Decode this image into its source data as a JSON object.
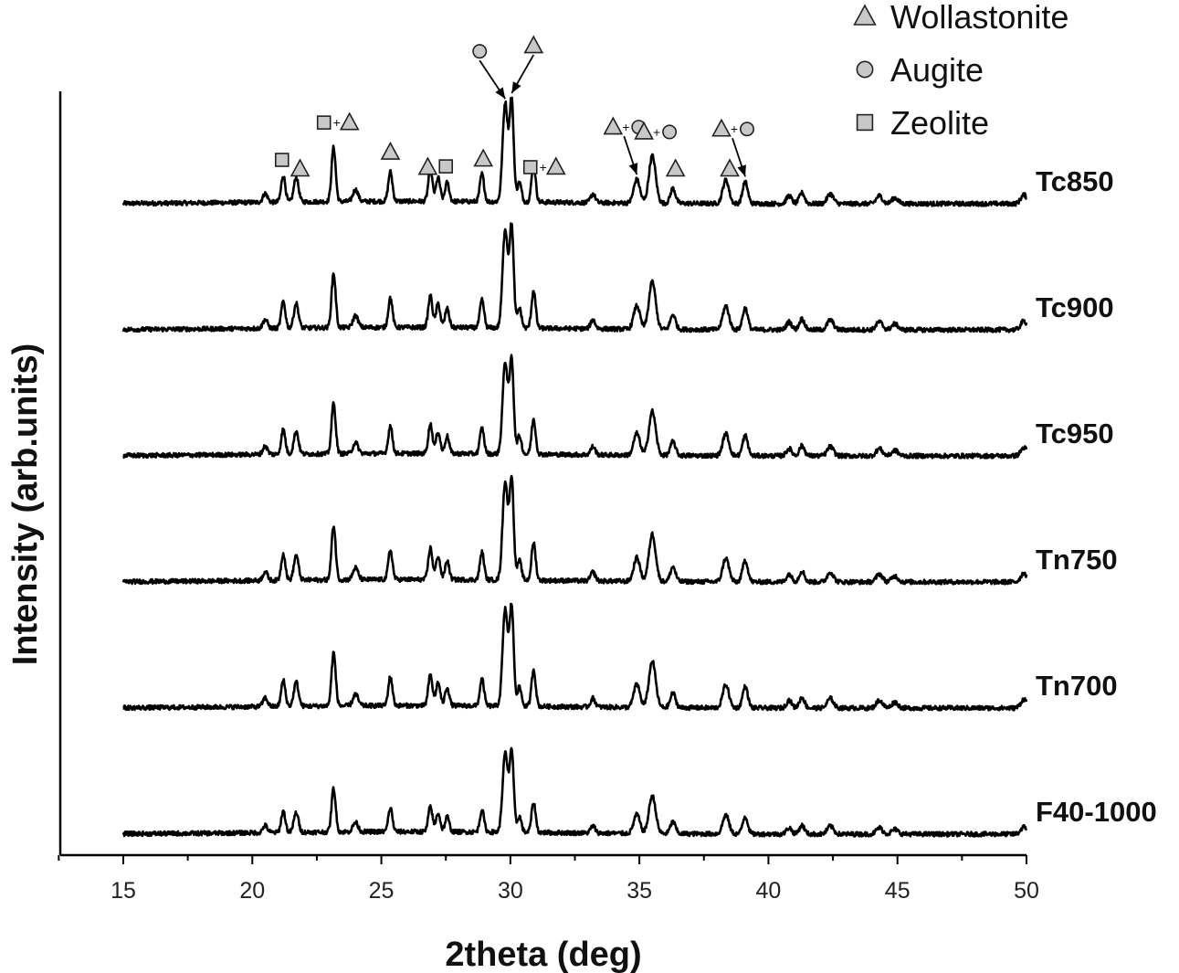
{
  "chart_data": {
    "type": "line",
    "xlabel": "2theta (deg)",
    "ylabel": "Intensity (arb.units)",
    "xlim": [
      12.5,
      50
    ],
    "x_ticks": [
      15,
      20,
      25,
      30,
      35,
      40,
      45,
      50
    ],
    "y_ticks_shown": false,
    "grid": false,
    "legend_position": "top-right",
    "legend": [
      {
        "name": "Wollastonite",
        "marker": "triangle"
      },
      {
        "name": "Augite",
        "marker": "circle"
      },
      {
        "name": "Zeolite",
        "marker": "square"
      }
    ],
    "series": [
      {
        "name": "Tc850",
        "offset": 5,
        "scale": 1.0
      },
      {
        "name": "Tc900",
        "offset": 4,
        "scale": 1.0
      },
      {
        "name": "Tc950",
        "offset": 3,
        "scale": 0.93
      },
      {
        "name": "Tn750",
        "offset": 2,
        "scale": 1.0
      },
      {
        "name": "Tn700",
        "offset": 1,
        "scale": 0.98
      },
      {
        "name": "F40-1000",
        "offset": 0,
        "scale": 0.8
      }
    ],
    "peaks": [
      {
        "x": 20.5,
        "h": 0.09,
        "w": 0.09
      },
      {
        "x": 21.2,
        "h": 0.27,
        "w": 0.08
      },
      {
        "x": 21.7,
        "h": 0.25,
        "w": 0.09
      },
      {
        "x": 23.15,
        "h": 0.55,
        "w": 0.08
      },
      {
        "x": 24.0,
        "h": 0.12,
        "w": 0.1
      },
      {
        "x": 25.35,
        "h": 0.3,
        "w": 0.08
      },
      {
        "x": 26.9,
        "h": 0.32,
        "w": 0.08
      },
      {
        "x": 27.2,
        "h": 0.24,
        "w": 0.08
      },
      {
        "x": 27.55,
        "h": 0.19,
        "w": 0.08
      },
      {
        "x": 28.9,
        "h": 0.28,
        "w": 0.08
      },
      {
        "x": 29.8,
        "h": 1.0,
        "w": 0.1
      },
      {
        "x": 30.05,
        "h": 1.02,
        "w": 0.08
      },
      {
        "x": 30.35,
        "h": 0.2,
        "w": 0.08
      },
      {
        "x": 30.9,
        "h": 0.38,
        "w": 0.08
      },
      {
        "x": 33.2,
        "h": 0.09,
        "w": 0.09
      },
      {
        "x": 34.9,
        "h": 0.24,
        "w": 0.12
      },
      {
        "x": 35.5,
        "h": 0.48,
        "w": 0.13
      },
      {
        "x": 36.3,
        "h": 0.15,
        "w": 0.1
      },
      {
        "x": 38.35,
        "h": 0.24,
        "w": 0.12
      },
      {
        "x": 39.1,
        "h": 0.22,
        "w": 0.1
      },
      {
        "x": 40.8,
        "h": 0.08,
        "w": 0.1
      },
      {
        "x": 41.3,
        "h": 0.11,
        "w": 0.1
      },
      {
        "x": 42.4,
        "h": 0.1,
        "w": 0.12
      },
      {
        "x": 44.3,
        "h": 0.08,
        "w": 0.12
      },
      {
        "x": 44.9,
        "h": 0.06,
        "w": 0.12
      },
      {
        "x": 49.9,
        "h": 0.09,
        "w": 0.12
      }
    ],
    "phase_markers": [
      {
        "x": 21.15,
        "symbols": [
          "square"
        ]
      },
      {
        "x": 21.85,
        "symbols": [
          "triangle"
        ]
      },
      {
        "x": 23.2,
        "symbols": [
          "square",
          "triangle"
        ]
      },
      {
        "x": 25.35,
        "symbols": [
          "triangle"
        ]
      },
      {
        "x": 26.8,
        "symbols": [
          "triangle"
        ]
      },
      {
        "x": 27.5,
        "symbols": [
          "square"
        ]
      },
      {
        "x": 28.95,
        "symbols": [
          "triangle"
        ]
      },
      {
        "x": 29.8,
        "symbols": [
          "circle"
        ],
        "arrow": true
      },
      {
        "x": 30.05,
        "symbols": [
          "triangle"
        ],
        "arrow": true
      },
      {
        "x": 31.2,
        "symbols": [
          "square",
          "triangle"
        ]
      },
      {
        "x": 34.9,
        "symbols": [
          "triangle",
          "circle"
        ],
        "arrow": true
      },
      {
        "x": 35.6,
        "symbols": [
          "triangle",
          "circle"
        ]
      },
      {
        "x": 36.4,
        "symbols": [
          "triangle"
        ]
      },
      {
        "x": 38.5,
        "symbols": [
          "triangle"
        ]
      },
      {
        "x": 39.1,
        "symbols": [
          "triangle",
          "circle"
        ],
        "arrow": true
      }
    ]
  }
}
